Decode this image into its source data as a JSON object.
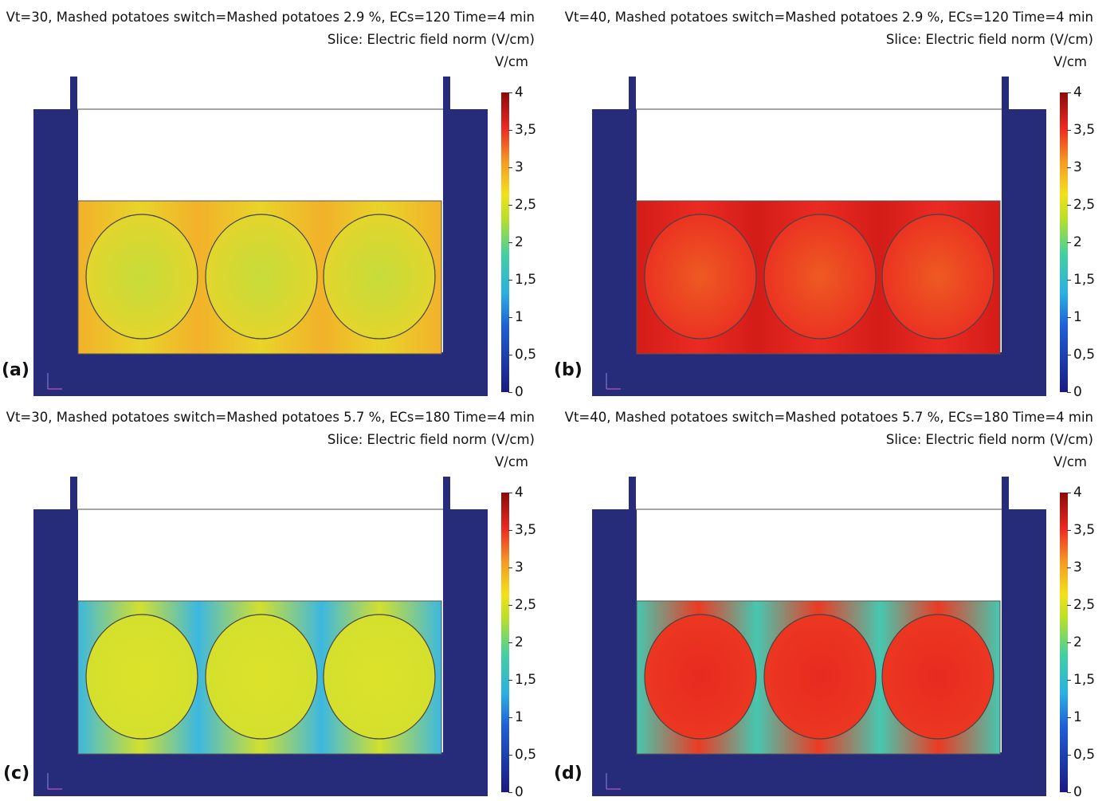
{
  "colorbar": {
    "unit": "V/cm",
    "ticks": [
      "4",
      "3,5",
      "3",
      "2,5",
      "2",
      "1,5",
      "1",
      "0,5",
      "0"
    ],
    "range": [
      0,
      4
    ]
  },
  "slice_label": "Slice: Electric field norm (V/cm)",
  "panels": [
    {
      "letter": "(a)",
      "title": "Vt=30, Mashed potatoes switch=Mashed potatoes 2.9 %, ECs=120 Time=4 min",
      "field_color": "#e8d42a",
      "circle_color": "#c6dc3a",
      "edge_color": "#f2b12a"
    },
    {
      "letter": "(b)",
      "title": "Vt=40, Mashed potatoes switch=Mashed potatoes 2.9 %, ECs=120 Time=4 min",
      "field_color": "#ea2b22",
      "circle_color": "#ee5a22",
      "edge_color": "#d41c18"
    },
    {
      "letter": "(c)",
      "title": "Vt=30, Mashed potatoes switch=Mashed potatoes 5.7 %, ECs=180 Time=4 min",
      "field_color": "#d2e02e",
      "circle_color": "#dde22a",
      "edge_color": "#3cb8e0"
    },
    {
      "letter": "(d)",
      "title": "Vt=40, Mashed potatoes switch=Mashed potatoes 5.7 %, ECs=180 Time=4 min",
      "field_color": "#ec3a22",
      "circle_color": "#e82a20",
      "edge_color": "#46c8b0"
    }
  ],
  "colors": {
    "container": "#262b7a",
    "outline": "#444444"
  }
}
